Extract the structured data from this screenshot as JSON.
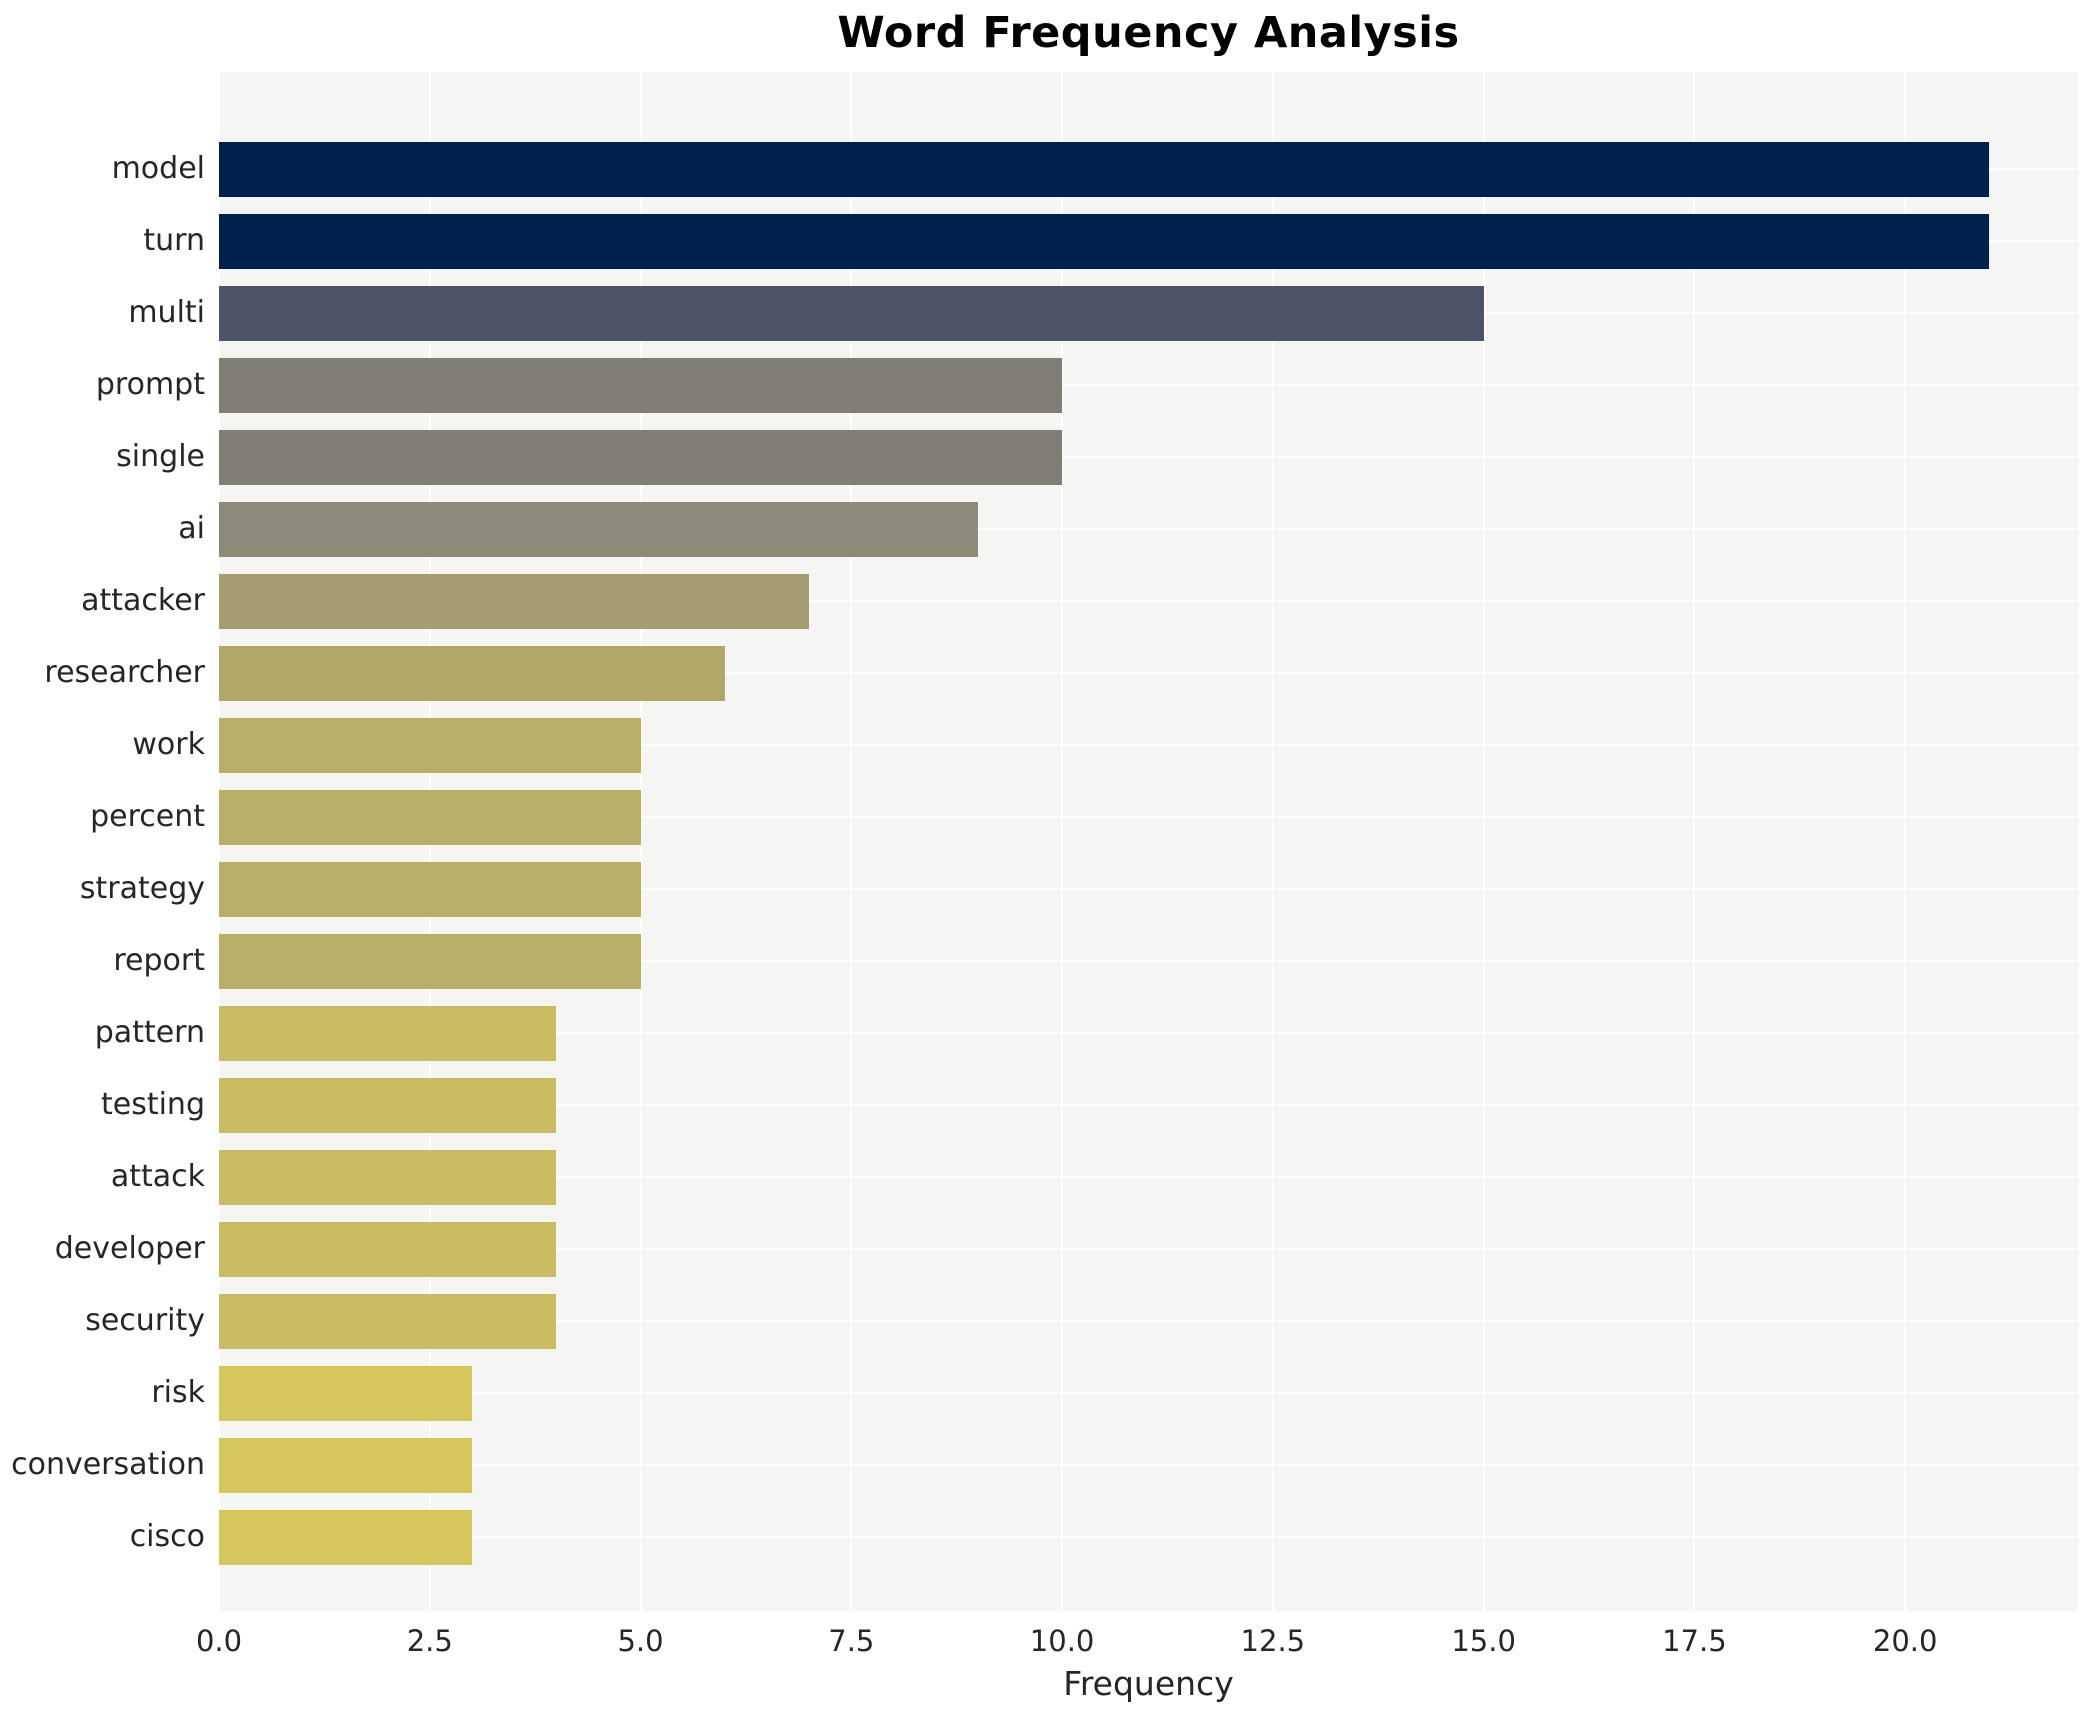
{
  "chart_data": {
    "type": "bar",
    "orientation": "horizontal",
    "title": "Word Frequency Analysis",
    "xlabel": "Frequency",
    "ylabel": "",
    "categories": [
      "model",
      "turn",
      "multi",
      "prompt",
      "single",
      "ai",
      "attacker",
      "researcher",
      "work",
      "percent",
      "strategy",
      "report",
      "pattern",
      "testing",
      "attack",
      "developer",
      "security",
      "risk",
      "conversation",
      "cisco"
    ],
    "values": [
      21,
      21,
      15,
      10,
      10,
      9,
      7,
      6,
      5,
      5,
      5,
      5,
      4,
      4,
      4,
      4,
      4,
      3,
      3,
      3
    ],
    "bar_colors": [
      "#00214d",
      "#00214d",
      "#4d5468",
      "#817e76",
      "#817e76",
      "#8e8a79",
      "#a59d70",
      "#b0a768",
      "#b9ae67",
      "#b9ae67",
      "#b9ae67",
      "#b9ae67",
      "#c9bc62",
      "#c9bc62",
      "#c9bc62",
      "#c9bc62",
      "#c9bc62",
      "#d5c75c",
      "#d5c75c",
      "#d5c75c"
    ],
    "xlim": [
      0,
      22.05
    ],
    "xticks": [
      0,
      2.5,
      5,
      7.5,
      10,
      12.5,
      15,
      17.5,
      20
    ],
    "xtick_labels": [
      "0.0",
      "2.5",
      "5.0",
      "7.5",
      "10.0",
      "12.5",
      "15.0",
      "17.5",
      "20.0"
    ],
    "grid": true,
    "legend": false,
    "plot_bg_color": "#f5f5f3",
    "grid_color": "#ffffff",
    "text_color": "#262626"
  }
}
